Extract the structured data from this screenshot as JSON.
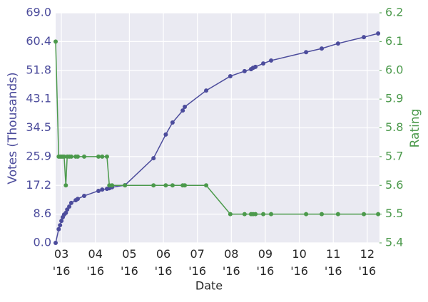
{
  "chart_data": {
    "type": "line",
    "x_label": "Date",
    "y_label": "Votes (Thousands)",
    "y2_label": "Rating",
    "x": [
      2.83,
      2.92,
      2.96,
      3.0,
      3.04,
      3.08,
      3.13,
      3.17,
      3.23,
      3.29,
      3.42,
      3.48,
      3.67,
      4.09,
      4.2,
      4.34,
      4.41,
      4.49,
      4.87,
      5.71,
      6.07,
      6.27,
      6.57,
      6.63,
      7.26,
      7.97,
      8.39,
      8.58,
      8.64,
      8.71,
      8.94,
      9.17,
      10.2,
      10.66,
      11.14,
      11.9,
      12.32
    ],
    "series": [
      {
        "name": "Votes (Thousands)",
        "color": "#4c4c9c",
        "axis": "y",
        "values": [
          0,
          4.1,
          5.3,
          6.6,
          7.7,
          8.5,
          9.0,
          10.0,
          10.9,
          12.0,
          12.8,
          13.2,
          14.1,
          15.6,
          16.0,
          16.2,
          16.4,
          16.7,
          17.3,
          25.4,
          32.5,
          36.1,
          39.7,
          40.8,
          45.7,
          50.0,
          51.5,
          52.1,
          52.5,
          52.8,
          53.8,
          54.7,
          57.2,
          58.3,
          59.8,
          61.7,
          62.8
        ]
      },
      {
        "name": "Rating",
        "color": "#4c9a4c",
        "axis": "y2",
        "values": [
          6.1,
          5.7,
          5.7,
          5.7,
          5.7,
          5.7,
          5.6,
          5.7,
          5.7,
          5.7,
          5.7,
          5.7,
          5.7,
          5.7,
          5.7,
          5.7,
          5.6,
          5.6,
          5.6,
          5.6,
          5.6,
          5.6,
          5.6,
          5.6,
          5.6,
          5.5,
          5.5,
          5.5,
          5.5,
          5.5,
          5.5,
          5.5,
          5.5,
          5.5,
          5.5,
          5.5,
          5.5
        ]
      }
    ],
    "xlim": [
      2.83,
      12.36
    ],
    "xticks": [
      {
        "value": 3,
        "label": "03\n'16"
      },
      {
        "value": 4,
        "label": "04\n'16"
      },
      {
        "value": 5,
        "label": "05\n'16"
      },
      {
        "value": 6,
        "label": "06\n'16"
      },
      {
        "value": 7,
        "label": "07\n'16"
      },
      {
        "value": 8,
        "label": "08\n'16"
      },
      {
        "value": 9,
        "label": "09\n'16"
      },
      {
        "value": 10,
        "label": "10\n'16"
      },
      {
        "value": 11,
        "label": "11\n'16"
      },
      {
        "value": 12,
        "label": "12\n'16"
      }
    ],
    "ylim": [
      0,
      69
    ],
    "yticks": [
      {
        "value": 0,
        "label": "0.0"
      },
      {
        "value": 8.625,
        "label": "8.6"
      },
      {
        "value": 17.25,
        "label": "17.2"
      },
      {
        "value": 25.875,
        "label": "25.9"
      },
      34.5,
      {
        "value": 43.125,
        "label": "43.1"
      },
      {
        "value": 51.75,
        "label": "51.8"
      },
      {
        "value": 60.375,
        "label": "60.4"
      },
      {
        "value": 69,
        "label": "69.0"
      }
    ],
    "y2lim": [
      5.4,
      6.2
    ],
    "y2ticks": [
      5.4,
      5.5,
      5.6,
      5.7,
      5.8,
      5.9,
      {
        "value": 6.0,
        "label": "6.0"
      },
      6.1,
      6.2
    ],
    "grid": true
  }
}
